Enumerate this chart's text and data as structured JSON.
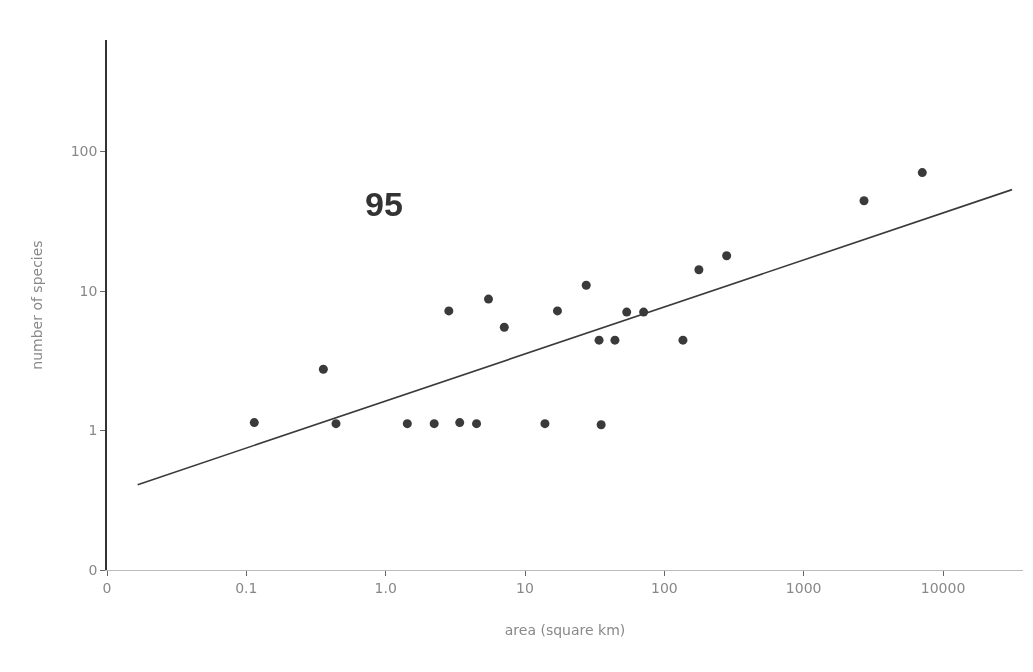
{
  "chart_data": {
    "type": "scatter",
    "xlabel": "area (square km)",
    "ylabel": "number of species",
    "annotations": [
      "95"
    ],
    "log": "xy",
    "grid": false,
    "marker": "circle",
    "xlim": [
      0.01,
      37500
    ],
    "ylim": [
      0.1,
      630
    ],
    "xticks": [
      {
        "value": 0.01,
        "label": "0"
      },
      0.1,
      {
        "value": 1,
        "label": "1.0"
      },
      10,
      100,
      1000,
      10000
    ],
    "yticks": [
      {
        "value": 0.1,
        "label": "0"
      },
      1,
      10,
      100
    ],
    "series": [
      {
        "color": "#3a3a3a",
        "x": [
          0.114,
          0.357,
          0.44,
          1.43,
          2.23,
          2.84,
          3.4,
          4.49,
          5.47,
          7.1,
          13.9,
          17.1,
          27.5,
          34,
          35.2,
          44.2,
          53.7,
          71,
          136,
          177,
          280,
          2710,
          7100
        ],
        "values": [
          1.14,
          2.75,
          1.12,
          1.12,
          1.12,
          7.2,
          1.14,
          1.12,
          8.75,
          5.5,
          1.12,
          7.2,
          11,
          4.44,
          1.1,
          4.44,
          7.06,
          7.06,
          4.44,
          14.2,
          17.9,
          44.4,
          70.6
        ]
      },
      {
        "type": "line",
        "color": "#3a3a3a",
        "line_style": "solid",
        "marker": "none",
        "x": [
          0.0166,
          31300
        ],
        "values": [
          0.409,
          53.3
        ]
      }
    ]
  }
}
